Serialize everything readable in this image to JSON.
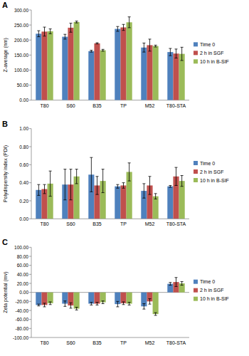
{
  "chart_data": [
    {
      "type": "bar",
      "title": "A",
      "y_label": "Z-average (nm)",
      "categories": [
        "T80",
        "S60",
        "B35",
        "TP",
        "M52",
        "T80-STA"
      ],
      "series": [
        {
          "name": "Time 0",
          "color": "#4f81bd",
          "values": [
            221,
            211,
            163,
            237,
            175,
            160
          ],
          "errors": [
            10,
            8,
            3,
            8,
            15,
            12
          ]
        },
        {
          "name": "2 h in SGF",
          "color": "#c0504d",
          "values": [
            228,
            241,
            189,
            242,
            183,
            155
          ],
          "errors": [
            15,
            15,
            2,
            10,
            20,
            15
          ]
        },
        {
          "name": "10 h in B-SIF",
          "color": "#9bbb59",
          "values": [
            229,
            260,
            166,
            259,
            180,
            154
          ],
          "errors": [
            8,
            3,
            3,
            18,
            3,
            22
          ]
        }
      ],
      "ylim": [
        0,
        300
      ],
      "yticks": [
        {
          "value": 0,
          "label": "0.00"
        },
        {
          "value": 50,
          "label": "50.00"
        },
        {
          "value": 100,
          "label": "100.00"
        },
        {
          "value": 150,
          "label": "150.00"
        },
        {
          "value": 200,
          "label": "200.00"
        },
        {
          "value": 250,
          "label": "250.00"
        },
        {
          "value": 300,
          "label": "300.00"
        }
      ],
      "grid": false,
      "legend": "right"
    },
    {
      "type": "bar",
      "title": "B",
      "y_label": "Polydispersity index (PDI)",
      "categories": [
        "T80",
        "S60",
        "B35",
        "TP",
        "M52",
        "T80-STA"
      ],
      "series": [
        {
          "name": "Time 0",
          "color": "#4f81bd",
          "values": [
            0.32,
            0.38,
            0.49,
            0.36,
            0.31,
            0.36
          ],
          "errors": [
            0.06,
            0.17,
            0.19,
            0.02,
            0.08,
            0.01
          ]
        },
        {
          "name": "2 h in SGF",
          "color": "#c0504d",
          "values": [
            0.33,
            0.38,
            0.37,
            0.37,
            0.37,
            0.47
          ],
          "errors": [
            0.05,
            0.17,
            0.1,
            0.03,
            0.1,
            0.1
          ]
        },
        {
          "name": "10 h in B-SIF",
          "color": "#9bbb59",
          "values": [
            0.39,
            0.47,
            0.42,
            0.52,
            0.25,
            0.42
          ],
          "errors": [
            0.14,
            0.08,
            0.13,
            0.1,
            0.03,
            0.06
          ]
        }
      ],
      "ylim": [
        0,
        1
      ],
      "yticks": [
        {
          "value": 0,
          "label": "0.00"
        },
        {
          "value": 0.2,
          "label": "0.20"
        },
        {
          "value": 0.4,
          "label": "0.40"
        },
        {
          "value": 0.6,
          "label": "0.60"
        },
        {
          "value": 0.8,
          "label": "0.80"
        },
        {
          "value": 1,
          "label": "1.00"
        }
      ],
      "grid": false,
      "legend": "right"
    },
    {
      "type": "bar",
      "title": "C",
      "y_label": "Zeta potential (mv)",
      "categories": [
        "T80",
        "S60",
        "B35",
        "TP",
        "M52",
        "T80-STA"
      ],
      "series": [
        {
          "name": "Time 0",
          "color": "#4f81bd",
          "values": [
            -28,
            -25,
            -25,
            -26,
            -31,
            19
          ],
          "errors": [
            2,
            6,
            3,
            6,
            6,
            3
          ]
        },
        {
          "name": "2 h in SGF",
          "color": "#c0504d",
          "values": [
            -28,
            -29,
            -25,
            -24,
            -20,
            23
          ],
          "errors": [
            4,
            6,
            3,
            3,
            6,
            10
          ]
        },
        {
          "name": "10 h in B-SIF",
          "color": "#9bbb59",
          "values": [
            -24,
            -36,
            -22,
            -25,
            -48,
            20
          ],
          "errors": [
            3,
            3,
            3,
            3,
            3,
            4
          ]
        }
      ],
      "ylim": [
        -100,
        100
      ],
      "yticks": [
        {
          "value": -100,
          "label": "-100.00"
        },
        {
          "value": -80,
          "label": "-80.00"
        },
        {
          "value": -60,
          "label": "-60.00"
        },
        {
          "value": -40,
          "label": "-40.00"
        },
        {
          "value": -20,
          "label": "-20.00"
        },
        {
          "value": 0,
          "label": "0.00"
        },
        {
          "value": 20,
          "label": "20.00"
        },
        {
          "value": 40,
          "label": "40.00"
        },
        {
          "value": 60,
          "label": "60.00"
        },
        {
          "value": 80,
          "label": "80.00"
        },
        {
          "value": 100,
          "label": "100.00"
        }
      ],
      "grid": false,
      "legend": "right"
    }
  ]
}
